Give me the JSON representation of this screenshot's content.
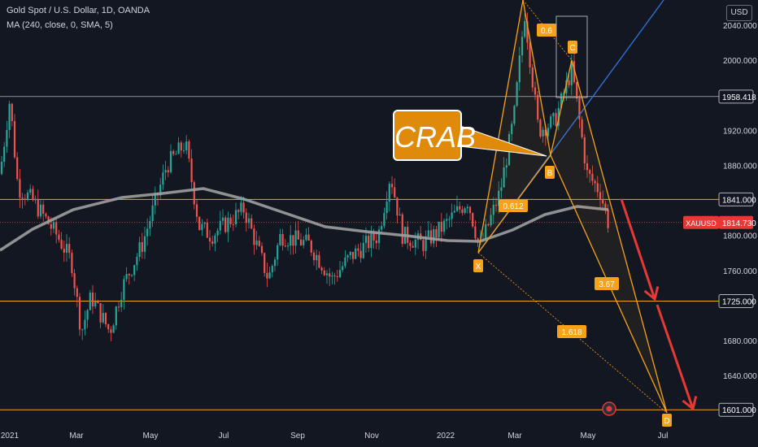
{
  "header": {
    "symbol_title": "Gold Spot / U.S. Dollar, 1D, OANDA",
    "indicator": "MA (240, close, 0, SMA, 5)",
    "currency_button": "USD"
  },
  "annotation": {
    "pattern_name": "CRAB"
  },
  "chart_data": {
    "type": "candlestick",
    "symbol": "XAUUSD",
    "last_price": "1814.730",
    "y_ticks": [
      "2040.000",
      "2000.000",
      "1958.418",
      "1920.000",
      "1880.000",
      "1841.000",
      "1800.000",
      "1760.000",
      "1725.000",
      "1680.000",
      "1640.000",
      "1601.000"
    ],
    "x_ticks": [
      "2021",
      "Mar",
      "May",
      "Jul",
      "Sep",
      "Nov",
      "2022",
      "Mar",
      "May",
      "Jul"
    ],
    "horizontal_levels": [
      "1958.418",
      "1841.000",
      "1725.000",
      "1601.000"
    ],
    "pattern_points": [
      "X",
      "B",
      "C",
      "D"
    ],
    "fib_labels": [
      "0.6",
      "0.612",
      "3.67",
      "1.618"
    ],
    "colors": {
      "background": "#131722",
      "up": "#26a69a",
      "down": "#ef5350",
      "ma": "#9e9e9e",
      "pattern": "#f7a21b",
      "trendline": "#2f6fd6",
      "arrow": "#e53935",
      "level": "#f7a21b"
    }
  }
}
